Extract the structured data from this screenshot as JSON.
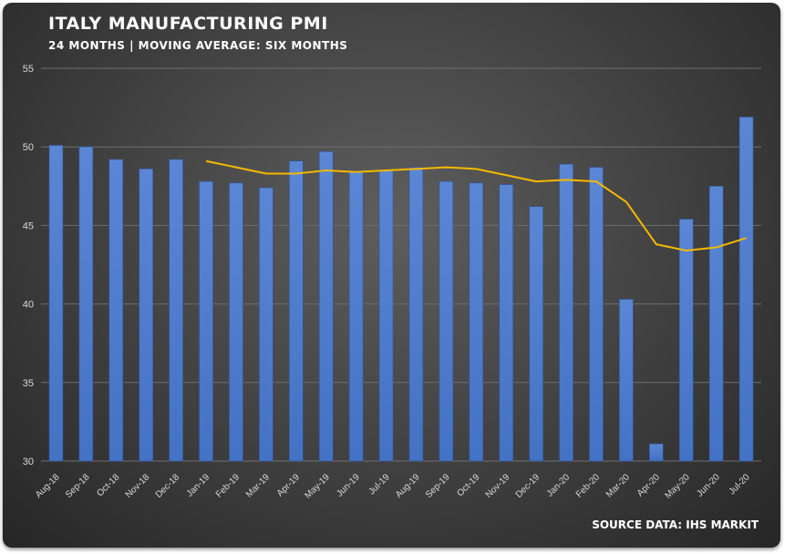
{
  "header": {
    "title": "ITALY MANUFACTURING PMI",
    "subtitle": "24 MONTHS | MOVING AVERAGE: SIX MONTHS"
  },
  "footer": {
    "source": "SOURCE DATA: IHS MARKIT"
  },
  "colors": {
    "bar": "#4472c4",
    "line": "#f5b800",
    "gridline": "#6e6e6e",
    "text": "#ffffff"
  },
  "chart_data": {
    "type": "bar",
    "categories": [
      "Aug-18",
      "Sep-18",
      "Oct-18",
      "Nov-18",
      "Dec-18",
      "Jan-19",
      "Feb-19",
      "Mar-19",
      "Apr-19",
      "May-19",
      "Jun-19",
      "Jul-19",
      "Aug-19",
      "Sep-19",
      "Oct-19",
      "Nov-19",
      "Dec-19",
      "Jan-20",
      "Feb-20",
      "Mar-20",
      "Apr-20",
      "May-20",
      "Jun-20",
      "Jul-20"
    ],
    "series": [
      {
        "kind": "bar",
        "values": [
          50.1,
          50.0,
          49.2,
          48.6,
          49.2,
          47.8,
          47.7,
          47.4,
          49.1,
          49.7,
          48.4,
          48.5,
          48.7,
          47.8,
          47.7,
          47.6,
          46.2,
          48.9,
          48.7,
          40.3,
          31.1,
          45.4,
          47.5,
          51.9
        ]
      },
      {
        "kind": "line",
        "values": [
          null,
          null,
          null,
          null,
          null,
          49.1,
          48.7,
          48.3,
          48.3,
          48.5,
          48.4,
          48.5,
          48.6,
          48.7,
          48.6,
          48.2,
          47.8,
          47.9,
          47.8,
          46.5,
          43.8,
          43.4,
          43.6,
          44.2
        ]
      }
    ],
    "yticks": [
      30,
      35,
      40,
      45,
      50,
      55
    ],
    "ylim": [
      30,
      55
    ],
    "grid": true,
    "legend": "none"
  }
}
